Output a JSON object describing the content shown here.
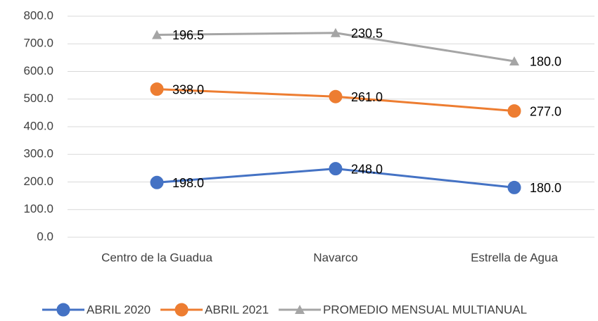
{
  "chart_data": {
    "type": "line",
    "stacked": true,
    "categories": [
      "Centro de la Guadua",
      "Navarco",
      "Estrella de Agua"
    ],
    "series": [
      {
        "name": "ABRIL 2020",
        "color": "#4472c4",
        "marker": "circle",
        "values": [
          198,
          248,
          180
        ],
        "value_labels": [
          "198.0",
          "248.0",
          "180.0"
        ]
      },
      {
        "name": "ABRIL 2021",
        "color": "#ed7d31",
        "marker": "circle",
        "values": [
          338,
          261,
          277
        ],
        "value_labels": [
          "338.0",
          "261.0",
          "277.0"
        ]
      },
      {
        "name": "PROMEDIO MENSUAL MULTIANUAL",
        "color": "#a5a5a5",
        "marker": "triangle",
        "values": [
          196.5,
          230.5,
          180
        ],
        "value_labels": [
          "196.5",
          "230.5",
          "180.0"
        ]
      }
    ],
    "ylim": [
      0,
      800
    ],
    "yticks": [
      {
        "value": 0,
        "label": "0.0"
      },
      {
        "value": 100,
        "label": "100.0"
      },
      {
        "value": 200,
        "label": "200.0"
      },
      {
        "value": 300,
        "label": "300.0"
      },
      {
        "value": 400,
        "label": "400.0"
      },
      {
        "value": 500,
        "label": "500.0"
      },
      {
        "value": 600,
        "label": "600.0"
      },
      {
        "value": 700,
        "label": "700.0"
      },
      {
        "value": 800,
        "label": "800.0"
      }
    ],
    "grid": true,
    "legend": "bottom"
  }
}
